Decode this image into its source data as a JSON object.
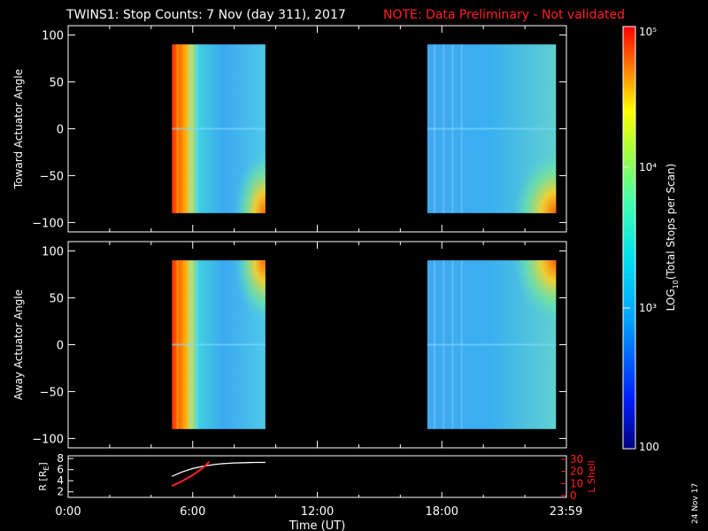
{
  "header": {
    "title": "TWINS1: Stop Counts:  7 Nov (day 311), 2017",
    "note": "NOTE: Data Preliminary - Not validated",
    "note_color": "#ff2020"
  },
  "footer": {
    "stamp": "24 Nov 17"
  },
  "chart_data": [
    {
      "type": "heatmap",
      "ylabel": "Toward Actuator Angle",
      "ylim": [
        -110,
        110
      ],
      "yticks": [
        100,
        50,
        0,
        -50,
        -100
      ],
      "xlim": [
        0,
        24
      ],
      "coverage_hours": [
        [
          5.0,
          9.5
        ],
        [
          17.3,
          23.5
        ]
      ],
      "angle_range": [
        -90,
        90
      ]
    },
    {
      "type": "heatmap",
      "ylabel": "Away Actuator Angle",
      "ylim": [
        -110,
        110
      ],
      "yticks": [
        100,
        50,
        0,
        -50,
        -100
      ],
      "xlim": [
        0,
        24
      ],
      "coverage_hours": [
        [
          5.0,
          9.5
        ],
        [
          17.3,
          23.5
        ]
      ],
      "angle_range": [
        -90,
        90
      ]
    },
    {
      "type": "line",
      "ylabel": "R [RE]",
      "ylabel_main": "R [R",
      "ylabel_sub": "E",
      "ylabel_end": "]",
      "ylim": [
        1,
        8.5
      ],
      "yticks": [
        8,
        6,
        4,
        2
      ],
      "y2label": "L Shell",
      "y2color": "#ff2020",
      "y2lim": [
        0,
        30
      ],
      "y2ticks": [
        30,
        20,
        10,
        0
      ],
      "xlabel": "Time (UT)",
      "xticks": [
        {
          "value": 0,
          "label": "0:00"
        },
        {
          "value": 6,
          "label": "6:00"
        },
        {
          "value": 12,
          "label": "12:00"
        },
        {
          "value": 18,
          "label": "18:00"
        },
        {
          "value": 23.98,
          "label": "23:59"
        }
      ],
      "series": [
        {
          "axis": "left",
          "color": "#ffffff",
          "x": [
            5.0,
            5.5,
            6.0,
            6.5,
            7.0,
            7.5,
            8.0,
            8.5,
            9.0,
            9.5
          ],
          "y": [
            4.8,
            5.6,
            6.2,
            6.6,
            6.9,
            7.1,
            7.2,
            7.25,
            7.3,
            7.3
          ]
        },
        {
          "axis": "right",
          "color": "#ff2020",
          "x": [
            5.0,
            5.5,
            6.0,
            6.5,
            6.8
          ],
          "y": [
            8,
            12,
            17,
            23,
            28
          ]
        }
      ]
    }
  ],
  "colorbar": {
    "label_log": "LOG",
    "label_sub": "10",
    "label_rest": "(Total Stops per Scan)",
    "ticks": [
      {
        "value": 100,
        "label": "100"
      },
      {
        "value": 1000,
        "label": "10³"
      },
      {
        "value": 10000,
        "label": "10⁴"
      },
      {
        "value": 100000,
        "label": "10⁵"
      }
    ],
    "range": [
      100,
      100000
    ]
  },
  "colors": {
    "axes": "#ffffff",
    "background": "#000000"
  }
}
